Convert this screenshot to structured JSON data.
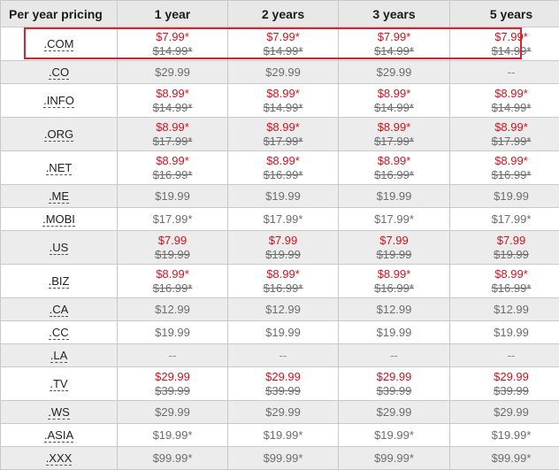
{
  "header": {
    "col0": "Per year pricing",
    "col1": "1 year",
    "col2": "2 years",
    "col3": "3 years",
    "col4": "5 years"
  },
  "rows": [
    {
      "tld": ".COM",
      "price": "$7.99*",
      "old": "$14.99*",
      "red": true,
      "price5": "$7.99*",
      "old5": "$14.99*"
    },
    {
      "tld": ".CO",
      "price": "$29.99",
      "old": "",
      "red": false,
      "price5": "--",
      "old5": ""
    },
    {
      "tld": ".INFO",
      "price": "$8.99*",
      "old": "$14.99*",
      "red": true,
      "price5": "$8.99*",
      "old5": "$14.99*"
    },
    {
      "tld": ".ORG",
      "price": "$8.99*",
      "old": "$17.99*",
      "red": true,
      "price5": "$8.99*",
      "old5": "$17.99*"
    },
    {
      "tld": ".NET",
      "price": "$8.99*",
      "old": "$16.99*",
      "red": true,
      "price5": "$8.99*",
      "old5": "$16.99*"
    },
    {
      "tld": ".ME",
      "price": "$19.99",
      "old": "",
      "red": false,
      "price5": "$19.99",
      "old5": ""
    },
    {
      "tld": ".MOBI",
      "price": "$17.99*",
      "old": "",
      "red": false,
      "price5": "$17.99*",
      "old5": ""
    },
    {
      "tld": ".US",
      "price": "$7.99",
      "old": "$19.99",
      "red": true,
      "price5": "$7.99",
      "old5": "$19.99"
    },
    {
      "tld": ".BIZ",
      "price": "$8.99*",
      "old": "$16.99*",
      "red": true,
      "price5": "$8.99*",
      "old5": "$16.99*"
    },
    {
      "tld": ".CA",
      "price": "$12.99",
      "old": "",
      "red": false,
      "price5": "$12.99",
      "old5": ""
    },
    {
      "tld": ".CC",
      "price": "$19.99",
      "old": "",
      "red": false,
      "price5": "$19.99",
      "old5": ""
    },
    {
      "tld": ".LA",
      "price": "--",
      "old": "",
      "red": false,
      "price5": "--",
      "old5": ""
    },
    {
      "tld": ".TV",
      "price": "$29.99",
      "old": "$39.99",
      "red": true,
      "price5": "$29.99",
      "old5": "$39.99"
    },
    {
      "tld": ".WS",
      "price": "$29.99",
      "old": "",
      "red": false,
      "price5": "$29.99",
      "old5": ""
    },
    {
      "tld": ".ASIA",
      "price": "$19.99*",
      "old": "",
      "red": false,
      "price5": "$19.99*",
      "old5": ""
    },
    {
      "tld": ".XXX",
      "price": "$99.99*",
      "old": "",
      "red": false,
      "price5": "$99.99*",
      "old5": ""
    }
  ],
  "colors": {
    "accent_red": "#d4121e",
    "highlight_border": "#e0202a",
    "alt_row": "#ececec",
    "header_bg": "#e8e8e8"
  }
}
